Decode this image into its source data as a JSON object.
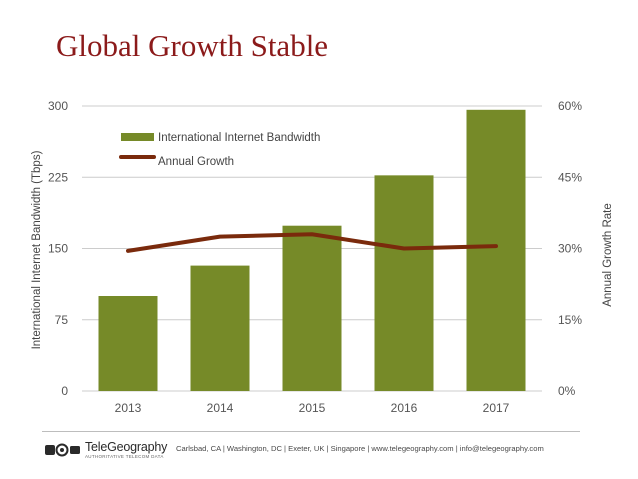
{
  "page": {
    "title": "Global Growth Stable",
    "footer": {
      "logo_name": "TeleGeography",
      "logo_tagline": "AUTHORITATIVE TELECOM DATA",
      "contact": "Carlsbad, CA | Washington, DC | Exeter, UK | Singapore | www.telegeography.com | info@telegeography.com"
    }
  },
  "colors": {
    "title": "#8b1a1a",
    "bars": "#768a28",
    "line": "#7a2a0c",
    "axis_text": "#555555",
    "gridline": "#cccccc"
  },
  "chart_data": {
    "type": "bar",
    "title": "",
    "categories": [
      "2013",
      "2014",
      "2015",
      "2016",
      "2017"
    ],
    "ylabel": "International Internet Bandwidth (Tbps)",
    "y2label": "Annual Growth Rate",
    "ylim": [
      0,
      300
    ],
    "yticks": [
      "0",
      "75",
      "150",
      "225",
      "300"
    ],
    "y2lim": [
      0,
      60
    ],
    "y2ticks": [
      "0%",
      "15%",
      "30%",
      "45%",
      "60%"
    ],
    "grid": true,
    "legend_position": "top-left",
    "series": [
      {
        "name": "International Internet Bandwidth",
        "type": "bar",
        "axis": "left",
        "values": [
          100,
          132,
          174,
          227,
          296
        ]
      },
      {
        "name": "Annual Growth",
        "type": "line",
        "axis": "right",
        "values": [
          29.5,
          32.5,
          33,
          30,
          30.5
        ]
      }
    ]
  }
}
